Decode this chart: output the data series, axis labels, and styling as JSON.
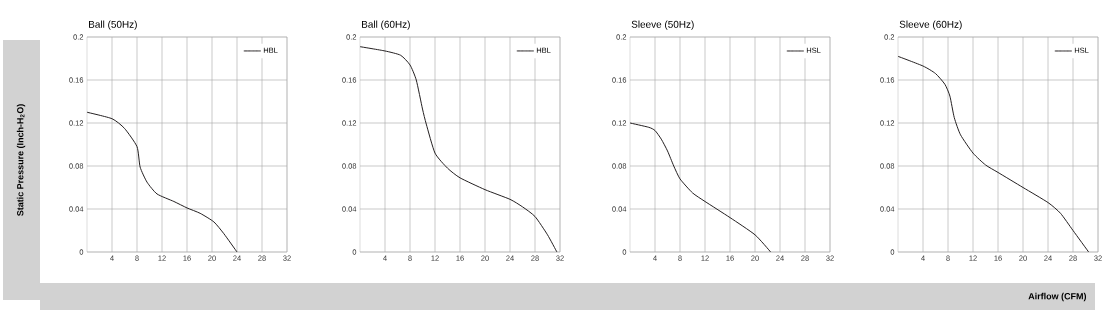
{
  "chart_data": [
    {
      "type": "line",
      "title": "Ball (50Hz)",
      "ylabel": "Static Pressure (Inch-H$_{2}$O)",
      "xlim": [
        0,
        32
      ],
      "ylim": [
        0,
        0.2
      ],
      "xticks": [
        4,
        8,
        12,
        16,
        20,
        24,
        28,
        32
      ],
      "yticks": [
        0,
        0.04,
        0.08,
        0.12,
        0.16,
        0.2
      ],
      "grid": true,
      "legend": "top right",
      "series": [
        {
          "name": "HBL",
          "color": "#231f20",
          "x": [
            0,
            4,
            6,
            8,
            8.5,
            9.6,
            11.2,
            13.9,
            16,
            18.1,
            20.3,
            21.9,
            24
          ],
          "values": [
            0.13,
            0.124,
            0.115,
            0.098,
            0.079,
            0.065,
            0.054,
            0.047,
            0.041,
            0.036,
            0.028,
            0.017,
            0
          ]
        }
      ]
    },
    {
      "type": "line",
      "title": "Ball (60Hz)",
      "xlim": [
        0,
        32
      ],
      "ylim": [
        0,
        0.2
      ],
      "xticks": [
        4,
        8,
        12,
        16,
        20,
        24,
        28,
        32
      ],
      "yticks": [
        0,
        0.04,
        0.08,
        0.12,
        0.16,
        0.2
      ],
      "grid": true,
      "legend": "top right",
      "series": [
        {
          "name": "HBL",
          "color": "#231f20",
          "x": [
            0,
            4,
            6.5,
            8,
            9,
            10,
            10.6,
            12,
            14,
            16,
            20,
            24,
            26,
            28,
            30,
            31.5
          ],
          "values": [
            0.191,
            0.187,
            0.183,
            0.174,
            0.16,
            0.133,
            0.119,
            0.092,
            0.078,
            0.069,
            0.058,
            0.049,
            0.042,
            0.033,
            0.016,
            0
          ]
        }
      ]
    },
    {
      "type": "line",
      "title": "Sleeve (50Hz)",
      "xlim": [
        0,
        32
      ],
      "ylim": [
        0,
        0.2
      ],
      "xticks": [
        4,
        8,
        12,
        16,
        20,
        24,
        28,
        32
      ],
      "yticks": [
        0,
        0.04,
        0.08,
        0.12,
        0.16,
        0.2
      ],
      "grid": true,
      "legend": "top right",
      "series": [
        {
          "name": "HSL",
          "color": "#231f20",
          "x": [
            0,
            3,
            4,
            5,
            6,
            7,
            8,
            10,
            12,
            16,
            20,
            22.5
          ],
          "values": [
            0.12,
            0.116,
            0.113,
            0.105,
            0.094,
            0.08,
            0.068,
            0.055,
            0.047,
            0.032,
            0.016,
            0
          ]
        }
      ]
    },
    {
      "type": "line",
      "title": "Sleeve (60Hz)",
      "xlabel": "Airflow (CFM)",
      "xlim": [
        0,
        32
      ],
      "ylim": [
        0,
        0.2
      ],
      "xticks": [
        4,
        8,
        12,
        16,
        20,
        24,
        28,
        32
      ],
      "yticks": [
        0,
        0.04,
        0.08,
        0.12,
        0.16,
        0.2
      ],
      "grid": true,
      "legend": "top right",
      "series": [
        {
          "name": "HSL",
          "color": "#231f20",
          "x": [
            0,
            4,
            6,
            7.5,
            8.3,
            9,
            10,
            12,
            14,
            16,
            20,
            24,
            26,
            28,
            30.5
          ],
          "values": [
            0.182,
            0.173,
            0.166,
            0.156,
            0.145,
            0.125,
            0.109,
            0.092,
            0.081,
            0.074,
            0.06,
            0.046,
            0.036,
            0.02,
            0
          ]
        }
      ]
    }
  ]
}
